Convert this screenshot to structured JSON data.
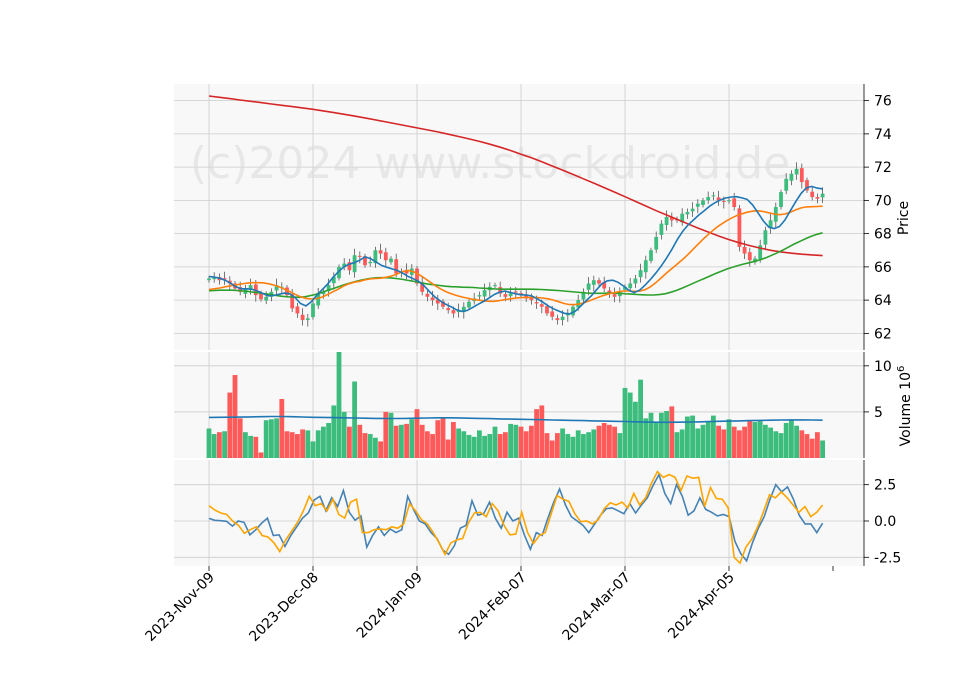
{
  "watermark": "(c)2024 www.stockdroid.de",
  "colors": {
    "up": "#3dbd7d",
    "down": "#ff5a5a",
    "ma_fast": "#1f77b4",
    "ma_mid": "#ff7f0e",
    "ma_slow": "#2ca02c",
    "ma_long": "#d62728",
    "vol_ma": "#1f77b4",
    "macd": "#4682b4",
    "signal": "#ffa500",
    "grid": "#cccccc",
    "panel_bg": "#f8f8f8"
  },
  "chart_data": {
    "type": "candlestick",
    "x_tick_labels": [
      "2023-Nov-09",
      "2023-Dec-08",
      "2024-Jan-09",
      "2024-Feb-07",
      "2024-Mar-07",
      "2024-Apr-05"
    ],
    "x_tick_index": [
      0,
      20,
      40,
      60,
      80,
      100
    ],
    "n_bars": 119,
    "price_panel": {
      "ylabel": "Price",
      "ylim": [
        61.0,
        77.0
      ],
      "yticks": [
        62,
        64,
        66,
        68,
        70,
        72,
        74,
        76
      ],
      "close": [
        65.3,
        65.35,
        65.2,
        65.25,
        65.0,
        64.7,
        64.5,
        64.7,
        64.9,
        64.3,
        64.05,
        64.2,
        64.5,
        64.9,
        64.8,
        64.3,
        63.5,
        63.2,
        62.8,
        62.9,
        63.8,
        64.4,
        64.5,
        64.9,
        65.4,
        66.0,
        66.2,
        65.8,
        66.7,
        66.6,
        66.1,
        66.3,
        67.0,
        66.8,
        66.4,
        66.5,
        65.6,
        65.7,
        65.6,
        65.9,
        65.0,
        64.5,
        64.2,
        64.0,
        63.8,
        63.6,
        63.4,
        63.2,
        63.4,
        63.6,
        63.9,
        64.1,
        64.3,
        64.6,
        64.8,
        64.9,
        64.4,
        64.2,
        64.4,
        64.5,
        64.3,
        64.1,
        64.0,
        63.8,
        63.6,
        63.2,
        63.0,
        62.8,
        63.0,
        63.2,
        63.6,
        64.0,
        64.5,
        65.0,
        65.2,
        65.0,
        64.7,
        64.4,
        64.2,
        64.5,
        64.8,
        65.0,
        65.3,
        65.8,
        66.4,
        67.0,
        67.8,
        68.6,
        69.0,
        68.8,
        68.8,
        69.2,
        69.3,
        69.5,
        69.8,
        70.0,
        70.2,
        70.3,
        70.0,
        69.9,
        70.0,
        69.6,
        67.2,
        66.8,
        66.4,
        66.5,
        67.3,
        68.2,
        68.8,
        69.6,
        70.5,
        71.3,
        71.6,
        71.9,
        71.1,
        70.6,
        70.2,
        70.1,
        70.4
      ],
      "ma_fast": [
        65.43,
        65.38,
        65.32,
        65.2,
        65.02,
        64.8,
        64.68,
        64.68,
        64.65,
        64.55,
        64.4,
        64.26,
        64.28,
        64.35,
        64.42,
        64.38,
        64.15,
        63.8,
        63.65,
        63.9,
        64.28,
        64.62,
        64.95,
        65.35,
        65.7,
        65.98,
        66.16,
        66.25,
        66.4,
        66.6,
        66.5,
        66.3,
        66.1,
        65.98,
        65.88,
        65.78,
        65.62,
        65.42,
        65.28,
        65.12,
        64.85,
        64.5,
        64.18,
        63.95,
        63.75,
        63.6,
        63.42,
        63.32,
        63.38,
        63.56,
        63.75,
        63.92,
        64.12,
        64.34,
        64.48,
        64.54,
        64.46,
        64.38,
        64.32,
        64.3,
        64.25,
        64.08,
        63.88,
        63.66,
        63.48,
        63.34,
        63.21,
        63.18,
        63.32,
        63.62,
        63.95,
        64.25,
        64.62,
        64.98,
        65.16,
        65.2,
        65.07,
        64.85,
        64.6,
        64.45,
        64.6,
        64.9,
        65.24,
        65.62,
        66.04,
        66.52,
        67.06,
        67.64,
        68.14,
        68.52,
        68.82,
        69.12,
        69.38,
        69.65,
        69.86,
        70.02,
        70.14,
        70.2,
        70.22,
        70.15,
        70.06,
        69.73,
        69.25,
        68.76,
        68.4,
        68.3,
        68.43,
        68.82,
        69.37,
        69.92,
        70.42,
        70.76,
        70.84,
        70.74,
        70.69
      ],
      "ma_mid": [
        64.64,
        64.68,
        64.73,
        64.8,
        64.86,
        64.92,
        64.97,
        65.02,
        65.05,
        65.05,
        65.04,
        64.99,
        64.91,
        64.8,
        64.66,
        64.51,
        64.35,
        64.2,
        64.11,
        64.07,
        64.09,
        64.18,
        64.33,
        64.5,
        64.66,
        64.85,
        64.98,
        65.08,
        65.13,
        65.22,
        65.28,
        65.3,
        65.32,
        65.38,
        65.46,
        65.58,
        65.72,
        65.78,
        65.71,
        65.55,
        65.33,
        65.1,
        64.88,
        64.68,
        64.51,
        64.38,
        64.28,
        64.19,
        64.12,
        64.05,
        64.0,
        63.96,
        63.93,
        63.93,
        63.97,
        64.03,
        64.08,
        64.12,
        64.15,
        64.16,
        64.16,
        64.15,
        64.13,
        64.08,
        64.0,
        63.9,
        63.8,
        63.73,
        63.73,
        63.78,
        63.88,
        64.0,
        64.13,
        64.25,
        64.35,
        64.43,
        64.5,
        64.55,
        64.55,
        64.53,
        64.54,
        64.63,
        64.8,
        65.04,
        65.33,
        65.63,
        65.9,
        66.17,
        66.45,
        66.75,
        67.08,
        67.41,
        67.73,
        68.02,
        68.3,
        68.53,
        68.74,
        68.92,
        69.08,
        69.19,
        69.29,
        69.35,
        69.37,
        69.33,
        69.25,
        69.18,
        69.14,
        69.18,
        69.29,
        69.43,
        69.55,
        69.61,
        69.62,
        69.63,
        69.65
      ],
      "ma_slow": [
        64.56,
        64.58,
        64.6,
        64.6,
        64.6,
        64.58,
        64.55,
        64.52,
        64.47,
        64.43,
        64.38,
        64.33,
        64.27,
        64.23,
        64.2,
        64.18,
        64.17,
        64.2,
        64.27,
        64.35,
        64.46,
        64.58,
        64.69,
        64.8,
        64.92,
        65.02,
        65.12,
        65.2,
        65.27,
        65.32,
        65.35,
        65.35,
        65.34,
        65.31,
        65.27,
        65.21,
        65.15,
        65.09,
        65.02,
        64.96,
        64.92,
        64.88,
        64.84,
        64.81,
        64.8,
        64.78,
        64.77,
        64.76,
        64.73,
        64.71,
        64.69,
        64.67,
        64.66,
        64.66,
        64.66,
        64.66,
        64.66,
        64.66,
        64.65,
        64.64,
        64.62,
        64.6,
        64.58,
        64.55,
        64.52,
        64.49,
        64.46,
        64.43,
        64.41,
        64.41,
        64.41,
        64.42,
        64.42,
        64.41,
        64.38,
        64.36,
        64.34,
        64.32,
        64.31,
        64.31,
        64.33,
        64.38,
        64.47,
        64.58,
        64.72,
        64.86,
        65.01,
        65.16,
        65.3,
        65.45,
        65.6,
        65.74,
        65.87,
        65.98,
        66.08,
        66.17,
        66.25,
        66.34,
        66.44,
        66.56,
        66.7,
        66.85,
        67.02,
        67.2,
        67.38,
        67.54,
        67.7,
        67.84,
        67.96,
        68.05
      ],
      "ma_long": [
        76.28,
        76.2,
        76.12,
        76.04,
        75.96,
        75.88,
        75.8,
        75.72,
        75.64,
        75.56,
        75.48,
        75.38,
        75.28,
        75.18,
        75.07,
        74.96,
        74.84,
        74.72,
        74.6,
        74.48,
        74.36,
        74.24,
        74.12,
        73.98,
        73.84,
        73.7,
        73.55,
        73.38,
        73.2,
        73.0,
        72.78,
        72.56,
        72.32,
        72.07,
        71.82,
        71.56,
        71.3,
        71.04,
        70.77,
        70.5,
        70.22,
        69.94,
        69.66,
        69.38,
        69.12,
        68.86,
        68.6,
        68.34,
        68.1,
        67.86,
        67.64,
        67.45,
        67.28,
        67.13,
        67.0,
        66.9,
        66.82,
        66.76,
        66.72,
        66.68
      ]
    },
    "volume_panel": {
      "ylabel": "Volume  10^6",
      "ylim": [
        0,
        11.5
      ],
      "yticks": [
        5,
        10
      ],
      "volume": [
        3.2,
        2.6,
        2.8,
        2.9,
        7.1,
        9.0,
        4.3,
        2.8,
        2.4,
        2.3,
        0.6,
        4.1,
        4.2,
        4.3,
        6.4,
        2.9,
        2.8,
        2.6,
        3.1,
        3.0,
        1.8,
        3.0,
        3.4,
        3.8,
        5.7,
        11.5,
        5.0,
        3.4,
        8.3,
        3.6,
        2.7,
        2.6,
        2.2,
        1.8,
        5.0,
        4.9,
        3.5,
        3.6,
        3.7,
        4.2,
        5.3,
        3.6,
        2.9,
        2.6,
        4.1,
        4.3,
        2.0,
        3.9,
        3.2,
        2.9,
        2.5,
        2.3,
        3.0,
        2.4,
        2.6,
        3.4,
        2.6,
        2.8,
        3.7,
        3.6,
        3.4,
        2.9,
        3.5,
        5.3,
        5.7,
        2.7,
        1.9,
        2.7,
        3.2,
        2.6,
        2.3,
        3.0,
        2.6,
        2.8,
        3.1,
        3.5,
        3.8,
        3.6,
        3.4,
        2.7,
        7.6,
        7.1,
        6.1,
        8.5,
        4.3,
        4.9,
        3.9,
        4.9,
        5.1,
        5.6,
        2.8,
        3.1,
        4.5,
        4.6,
        3.2,
        3.6,
        4.0,
        4.6,
        3.5,
        3.1,
        4.2,
        3.4,
        3.0,
        3.4,
        4.0,
        3.9,
        4.0,
        3.6,
        3.3,
        2.9,
        2.7,
        3.8,
        4.1,
        3.5,
        3.0,
        2.6,
        2.1,
        2.8,
        1.9
      ],
      "volume_ma": [
        4.4,
        4.42,
        4.43,
        4.44,
        4.46,
        4.48,
        4.5,
        4.5,
        4.48,
        4.45,
        4.42,
        4.4,
        4.38,
        4.36,
        4.34,
        4.32,
        4.3,
        4.29,
        4.29,
        4.3,
        4.32,
        4.34,
        4.36,
        4.36,
        4.35,
        4.32,
        4.3,
        4.27,
        4.24,
        4.22,
        4.2,
        4.18,
        4.15,
        4.12,
        4.1,
        4.08,
        4.06,
        4.03,
        4.0,
        3.98,
        3.96,
        3.93,
        3.9,
        3.88,
        3.87,
        3.88,
        3.9,
        3.92,
        3.95,
        3.98,
        4.0,
        4.03,
        4.06,
        4.08,
        4.1,
        4.12,
        4.13,
        4.13,
        4.12,
        4.1
      ]
    },
    "macd_panel": {
      "ylim": [
        -3.1,
        4.2
      ],
      "yticks": [
        -2.5,
        0.0,
        2.5
      ],
      "ytick_labels": [
        "-2.5",
        "0.0",
        "2.5"
      ],
      "macd": [
        0.18,
        0.05,
        0.02,
        -0.02,
        -0.35,
        0.0,
        -0.1,
        -0.95,
        -0.6,
        -0.15,
        0.2,
        -1.0,
        -0.95,
        -1.75,
        -1.0,
        -0.4,
        0.2,
        0.55,
        1.45,
        1.7,
        0.7,
        1.6,
        1.0,
        2.1,
        0.6,
        0.05,
        0.35,
        -1.8,
        -1.0,
        -0.4,
        -1.0,
        -0.55,
        -0.8,
        -0.6,
        1.7,
        0.8,
        0.0,
        -0.2,
        -0.8,
        -1.2,
        -2.0,
        -2.3,
        -1.7,
        -0.5,
        -0.3,
        1.4,
        0.4,
        0.5,
        1.3,
        0.2,
        -0.5,
        0.6,
        0.0,
        0.2,
        -1.0,
        -1.95,
        -0.8,
        -1.0,
        0.2,
        1.3,
        2.2,
        1.1,
        0.3,
        0.0,
        -0.3,
        -0.8,
        -0.2,
        0.4,
        0.85,
        0.9,
        0.7,
        0.5,
        1.2,
        0.55,
        1.1,
        1.6,
        2.45,
        3.2,
        1.9,
        1.2,
        2.5,
        1.7,
        0.4,
        0.7,
        1.6,
        0.8,
        0.6,
        0.35,
        0.45,
        0.3,
        -1.4,
        -2.25,
        -2.75,
        -1.5,
        -0.5,
        0.3,
        1.5,
        2.5,
        2.0,
        2.35,
        1.5,
        0.4,
        -0.2,
        -0.2,
        -0.8,
        -0.15
      ],
      "signal": [
        1.05,
        0.75,
        0.55,
        0.45,
        0.0,
        -0.3,
        -0.85,
        -0.6,
        -0.4,
        -1.0,
        -1.1,
        -1.5,
        -2.1,
        -1.3,
        -0.7,
        -0.1,
        0.7,
        1.7,
        1.05,
        1.2,
        0.7,
        1.5,
        0.45,
        0.2,
        1.3,
        1.5,
        -0.8,
        -0.8,
        -0.6,
        -0.55,
        -0.6,
        -0.4,
        -0.5,
        -0.2,
        1.2,
        0.7,
        0.1,
        -0.2,
        -0.8,
        -1.5,
        -2.3,
        -1.5,
        -1.3,
        -1.2,
        -0.1,
        0.55,
        0.6,
        0.3,
        1.2,
        0.7,
        -0.3,
        -0.95,
        -0.9,
        0.6,
        -0.8,
        -1.55,
        -1.0,
        -0.8,
        0.5,
        1.75,
        1.5,
        1.35,
        0.5,
        -0.05,
        0.0,
        -0.2,
        0.1,
        0.85,
        1.25,
        1.1,
        1.3,
        0.9,
        1.9,
        1.1,
        1.6,
        2.6,
        3.4,
        3.0,
        3.2,
        3.0,
        2.1,
        3.1,
        2.95,
        3.0,
        1.0,
        2.3,
        1.55,
        1.5,
        0.9,
        -2.5,
        -2.9,
        -1.8,
        -1.25,
        -0.4,
        0.65,
        1.8,
        1.6,
        2.0,
        1.6,
        1.1,
        0.6,
        1.0,
        0.3,
        0.6,
        1.1
      ],
      "zero_line": 0.0
    }
  }
}
